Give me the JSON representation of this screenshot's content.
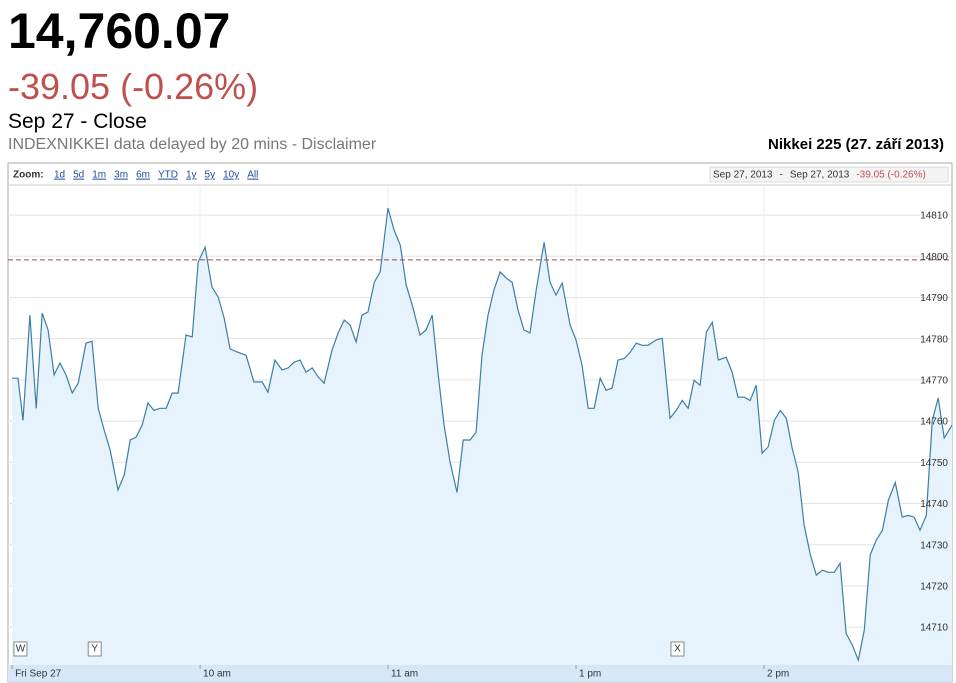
{
  "header": {
    "price": "14,760.07",
    "change": "-39.05 (-0.26%)",
    "status": "Sep 27 - Close",
    "note": "INDEXNIKKEI data delayed by 20 mins - Disclaimer"
  },
  "toolbar": {
    "zoom_label": "Zoom:",
    "zoom_options": [
      "1d",
      "5d",
      "1m",
      "3m",
      "6m",
      "YTD",
      "1y",
      "5y",
      "10y",
      "All"
    ],
    "range_start": "Sep 27, 2013",
    "range_sep": "-",
    "range_end": "Sep 27, 2013",
    "range_change": "-39.05 (-0.26%)"
  },
  "chart_data": {
    "type": "line",
    "title": "Nikkei 225 (27. září 2013)",
    "x": [
      0,
      1.9,
      3.5,
      5.7,
      7.7,
      9.6,
      11.5,
      13.4,
      15.3,
      17.2,
      19.2,
      21.1,
      23.6,
      25.5,
      27.5,
      29.4,
      31.3,
      33.8,
      35.8,
      37.7,
      39.6,
      41.5,
      43.4,
      45.3,
      47.2,
      49.2,
      51.1,
      53.0,
      55.5,
      57.5,
      59.4,
      61.6,
      63.8,
      65.8,
      67.7,
      69.6,
      72.1,
      74.7,
      77.2,
      79.8,
      81.7,
      83.9,
      86.2,
      88.1,
      90.0,
      91.9,
      93.8,
      95.8,
      97.7,
      99.6,
      102.1,
      104.1,
      106.0,
      107.9,
      109.8,
      111.7,
      113.6,
      115.6,
      117.5,
      120.0,
      121.9,
      123.9,
      125.8,
      127.7,
      130.2,
      132.1,
      134.1,
      136.0,
      137.9,
      139.8,
      142.0,
      144.0,
      146.2,
      148.1,
      150.0,
      151.9,
      153.8,
      155.8,
      157.7,
      159.6,
      161.5,
      163.4,
      165.3,
      167.3,
      169.8,
      171.7,
      173.6,
      175.6,
      178.1,
      180.0,
      181.9,
      183.9,
      185.8,
      187.7,
      189.6,
      191.5,
      193.4,
      195.4,
      197.3,
      199.2,
      201.1,
      203.0,
      205.6,
      207.5,
      210.0,
      212.0,
      213.9,
      215.8,
      217.7,
      219.6,
      221.6,
      223.5,
      225.4,
      227.9,
      229.8,
      231.7,
      233.7,
      235.6,
      237.5,
      239.4,
      241.3,
      243.3,
      245.2,
      247.1,
      249.0,
      250.9,
      252.8,
      254.8,
      256.7,
      258.6,
      260.5,
      262.4,
      264.3,
      266.2,
      268.2,
      270.1,
      272.0,
      273.9,
      275.8,
      277.8,
      279.7,
      281.9,
      284.1,
      286.0,
      287.9,
      289.8,
      291.8,
      293.7,
      295.6,
      297.5,
      300.0
    ],
    "series": [
      {
        "color": "#3d7ea6",
        "values": [
          14770.4,
          14770.4,
          14760.2,
          14785.7,
          14763.1,
          14786.2,
          14782.1,
          14771.2,
          14774.1,
          14771.2,
          14766.8,
          14769.2,
          14778.9,
          14779.4,
          14763.1,
          14757.8,
          14753.0,
          14743.3,
          14746.9,
          14755.4,
          14756.1,
          14759.0,
          14764.4,
          14762.6,
          14763.1,
          14763.1,
          14766.8,
          14766.8,
          14780.9,
          14780.4,
          14798.6,
          14802.2,
          14792.5,
          14790.1,
          14785.0,
          14777.5,
          14776.7,
          14776.0,
          14769.5,
          14769.5,
          14767.0,
          14774.8,
          14772.4,
          14772.9,
          14774.3,
          14774.8,
          14771.9,
          14772.9,
          14770.7,
          14769.2,
          14777.2,
          14781.4,
          14784.5,
          14783.3,
          14779.2,
          14785.7,
          14786.5,
          14793.7,
          14796.2,
          14811.7,
          14806.4,
          14802.7,
          14793.0,
          14788.2,
          14780.9,
          14782.1,
          14785.7,
          14771.2,
          14759.0,
          14750.0,
          14742.7,
          14755.4,
          14755.4,
          14757.3,
          14776.0,
          14785.7,
          14791.8,
          14796.2,
          14794.7,
          14793.7,
          14786.9,
          14782.1,
          14781.4,
          14791.8,
          14803.4,
          14793.7,
          14790.6,
          14793.5,
          14783.3,
          14779.7,
          14773.6,
          14763.1,
          14763.1,
          14770.4,
          14767.5,
          14768.0,
          14774.8,
          14775.2,
          14776.7,
          14778.9,
          14778.4,
          14778.4,
          14779.7,
          14780.1,
          14760.7,
          14762.6,
          14765.0,
          14763.1,
          14769.9,
          14768.7,
          14781.6,
          14784.0,
          14774.8,
          14775.5,
          14771.9,
          14765.8,
          14765.8,
          14765.0,
          14768.7,
          14752.2,
          14753.7,
          14760.2,
          14762.6,
          14760.7,
          14753.4,
          14747.6,
          14734.8,
          14727.5,
          14722.6,
          14723.8,
          14723.3,
          14723.3,
          14725.5,
          14708.5,
          14705.6,
          14702.0,
          14709.3,
          14727.5,
          14731.1,
          14733.5,
          14740.8,
          14745.1,
          14736.7,
          14737.1,
          14736.7,
          14733.5,
          14737.1,
          14760.2,
          14765.6,
          14755.9,
          14759.0
        ]
      }
    ],
    "previous_close": 14799.12,
    "xlim": [
      -1.3,
      300
    ],
    "xticks": [
      {
        "value": 0,
        "label": "Fri Sep 27"
      },
      {
        "value": 60,
        "label": "10 am"
      },
      {
        "value": 120,
        "label": "11 am"
      },
      {
        "value": 180,
        "label": "1 pm"
      },
      {
        "value": 240,
        "label": "2 pm"
      }
    ],
    "ylim": [
      14700.8,
      14817.3
    ],
    "yticks": [
      14710,
      14720,
      14730,
      14740,
      14750,
      14760,
      14770,
      14780,
      14790,
      14800,
      14810
    ],
    "grid": true,
    "annotations": [
      {
        "label": "W",
        "x": 0.6
      },
      {
        "label": "Y",
        "x": 24.3
      },
      {
        "label": "X",
        "x": 210.3
      }
    ]
  }
}
